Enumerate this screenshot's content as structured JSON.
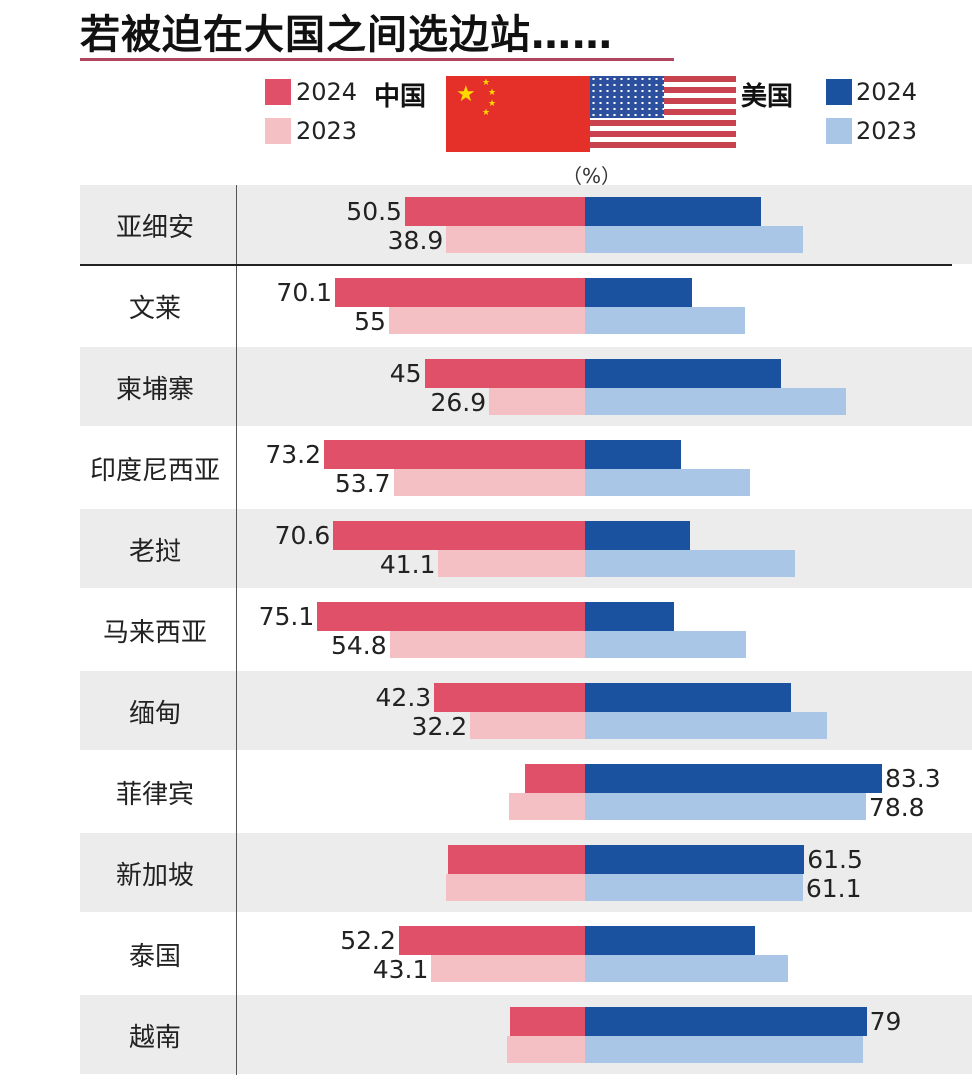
{
  "title": "若被迫在大国之间选边站……",
  "legend": {
    "china_label": "中国",
    "us_label": "美国",
    "items": [
      {
        "side": "china",
        "year": "2024",
        "color": "#e05068"
      },
      {
        "side": "china",
        "year": "2023",
        "color": "#f4c0c4"
      },
      {
        "side": "us",
        "year": "2024",
        "color": "#1a52a0"
      },
      {
        "side": "us",
        "year": "2023",
        "color": "#aac6e6"
      }
    ]
  },
  "unit": "（%）",
  "chart_data": {
    "type": "bar",
    "orientation": "horizontal-diverging",
    "title": "若被迫在大国之间选边站……",
    "unit": "%",
    "categories": [
      "亚细安",
      "文莱",
      "柬埔寨",
      "印度尼西亚",
      "老挝",
      "马来西亚",
      "缅甸",
      "菲律宾",
      "新加坡",
      "泰国",
      "越南"
    ],
    "series": [
      {
        "name": "中国 2024",
        "side": "left",
        "color": "#e05068",
        "values": [
          50.5,
          70.1,
          45,
          73.2,
          70.6,
          75.1,
          42.3,
          16.7,
          38.5,
          52.2,
          21
        ],
        "labels": [
          "50.5",
          "70.1",
          "45",
          "73.2",
          "70.6",
          "75.1",
          "42.3",
          "",
          "",
          "52.2",
          ""
        ]
      },
      {
        "name": "中国 2023",
        "side": "left",
        "color": "#f4c0c4",
        "values": [
          38.9,
          55,
          26.9,
          53.7,
          41.1,
          54.8,
          32.2,
          21.2,
          38.9,
          43.1,
          21.9
        ],
        "labels": [
          "38.9",
          "55",
          "26.9",
          "53.7",
          "41.1",
          "54.8",
          "32.2",
          "",
          "",
          "43.1",
          ""
        ]
      },
      {
        "name": "美国 2024",
        "side": "right",
        "color": "#1a52a0",
        "values": [
          49.5,
          29.9,
          55,
          26.8,
          29.4,
          24.9,
          57.7,
          83.3,
          61.5,
          47.8,
          79
        ],
        "labels": [
          "",
          "",
          "",
          "",
          "",
          "",
          "",
          "83.3",
          "61.5",
          "",
          "79"
        ]
      },
      {
        "name": "美国 2023",
        "side": "right",
        "color": "#aac6e6",
        "values": [
          61.1,
          45,
          73.1,
          46.3,
          58.9,
          45.2,
          67.8,
          78.8,
          61.1,
          56.9,
          78.1
        ],
        "labels": [
          "",
          "",
          "",
          "",
          "",
          "",
          "",
          "78.8",
          "61.1",
          "",
          ""
        ]
      }
    ],
    "xlim": [
      0,
      100
    ],
    "grid": false,
    "legend_position": "top"
  }
}
